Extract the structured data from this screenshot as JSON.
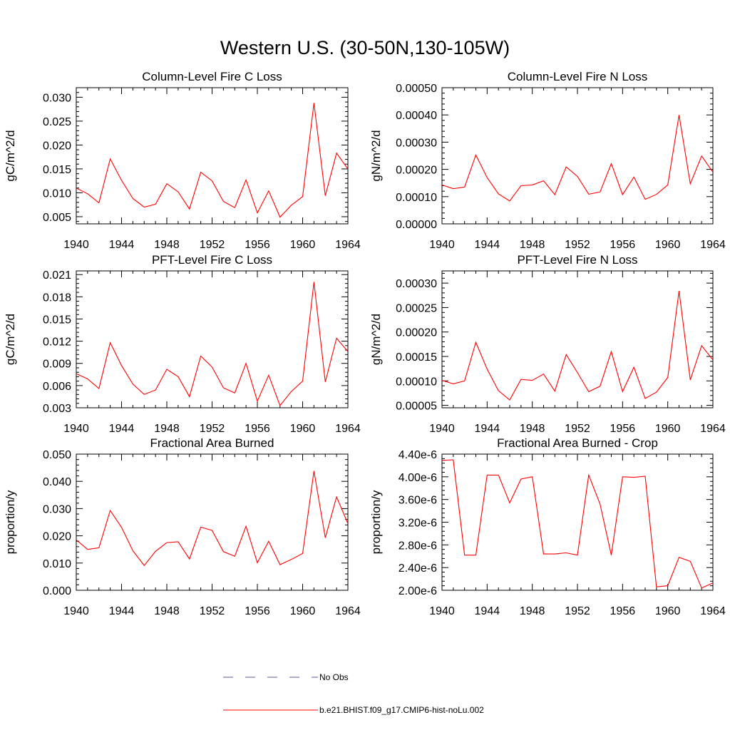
{
  "figure": {
    "title": "Western U.S. (30-50N,130-105W)"
  },
  "legend": {
    "obs_label": "No Obs",
    "obs_color": "#5a5aa0",
    "model_label": "b.e21.BHIST.f09_g17.CMIP6-hist-noLu.002",
    "model_color": "#ff0000"
  },
  "chart_data": [
    {
      "type": "line",
      "title": "Column-Level Fire C Loss",
      "ylabel": "gC/m^2/d",
      "xlim": [
        1940,
        1964
      ],
      "ylim": [
        0.0035,
        0.032
      ],
      "xticks": [
        1940,
        1944,
        1948,
        1952,
        1956,
        1960,
        1964
      ],
      "xtick_labels": [
        "1940",
        "1944",
        "1948",
        "1952",
        "1956",
        "1960",
        "1964"
      ],
      "yticks": [
        0.005,
        0.01,
        0.015,
        0.02,
        0.025,
        0.03
      ],
      "ytick_labels": [
        "0.005",
        "0.010",
        "0.015",
        "0.020",
        "0.025",
        "0.030"
      ],
      "x": [
        1940,
        1941,
        1942,
        1943,
        1944,
        1945,
        1946,
        1947,
        1948,
        1949,
        1950,
        1951,
        1952,
        1953,
        1954,
        1955,
        1956,
        1957,
        1958,
        1959,
        1960,
        1961,
        1962,
        1963,
        1964
      ],
      "series": [
        {
          "values": [
            0.011,
            0.0098,
            0.0079,
            0.0171,
            0.0126,
            0.0088,
            0.007,
            0.0076,
            0.0119,
            0.0102,
            0.0066,
            0.0143,
            0.0125,
            0.0082,
            0.0069,
            0.0127,
            0.0058,
            0.0104,
            0.0049,
            0.0074,
            0.0092,
            0.0288,
            0.0094,
            0.0183,
            0.015
          ]
        }
      ]
    },
    {
      "type": "line",
      "title": "Column-Level Fire N Loss",
      "ylabel": "gN/m^2/d",
      "xlim": [
        1940,
        1964
      ],
      "ylim": [
        0.0,
        0.0005
      ],
      "xticks": [
        1940,
        1944,
        1948,
        1952,
        1956,
        1960,
        1964
      ],
      "xtick_labels": [
        "1940",
        "1944",
        "1948",
        "1952",
        "1956",
        "1960",
        "1964"
      ],
      "yticks": [
        0.0,
        0.0001,
        0.0002,
        0.0003,
        0.0004,
        0.0005
      ],
      "ytick_labels": [
        "0.00000",
        "0.00010",
        "0.00020",
        "0.00030",
        "0.00040",
        "0.00050"
      ],
      "x": [
        1940,
        1941,
        1942,
        1943,
        1944,
        1945,
        1946,
        1947,
        1948,
        1949,
        1950,
        1951,
        1952,
        1953,
        1954,
        1955,
        1956,
        1957,
        1958,
        1959,
        1960,
        1961,
        1962,
        1963,
        1964
      ],
      "series": [
        {
          "values": [
            0.000143,
            0.000129,
            0.000135,
            0.000253,
            0.00017,
            0.00011,
            8.4e-05,
            0.00014,
            0.000143,
            0.000158,
            0.000107,
            0.000209,
            0.000174,
            0.000109,
            0.000117,
            0.000221,
            0.000107,
            0.000172,
            9e-05,
            0.000108,
            0.000143,
            0.0004,
            0.000147,
            0.000249,
            0.00019
          ]
        }
      ]
    },
    {
      "type": "line",
      "title": "PFT-Level Fire C Loss",
      "ylabel": "gC/m^2/d",
      "xlim": [
        1940,
        1964
      ],
      "ylim": [
        0.003,
        0.0215
      ],
      "xticks": [
        1940,
        1944,
        1948,
        1952,
        1956,
        1960,
        1964
      ],
      "xtick_labels": [
        "1940",
        "1944",
        "1948",
        "1952",
        "1956",
        "1960",
        "1964"
      ],
      "yticks": [
        0.003,
        0.006,
        0.009,
        0.012,
        0.015,
        0.018,
        0.021
      ],
      "ytick_labels": [
        "0.003",
        "0.006",
        "0.009",
        "0.012",
        "0.015",
        "0.018",
        "0.021"
      ],
      "x": [
        1940,
        1941,
        1942,
        1943,
        1944,
        1945,
        1946,
        1947,
        1948,
        1949,
        1950,
        1951,
        1952,
        1953,
        1954,
        1955,
        1956,
        1957,
        1958,
        1959,
        1960,
        1961,
        1962,
        1963,
        1964
      ],
      "series": [
        {
          "values": [
            0.0076,
            0.0069,
            0.0056,
            0.0118,
            0.0087,
            0.0062,
            0.0048,
            0.0054,
            0.0082,
            0.0072,
            0.0045,
            0.01,
            0.0085,
            0.0057,
            0.005,
            0.009,
            0.0039,
            0.0074,
            0.0033,
            0.0052,
            0.0066,
            0.02,
            0.0065,
            0.0124,
            0.0106
          ]
        }
      ]
    },
    {
      "type": "line",
      "title": "PFT-Level Fire N Loss",
      "ylabel": "gN/m^2/d",
      "xlim": [
        1940,
        1964
      ],
      "ylim": [
        4.5e-05,
        0.000325
      ],
      "xticks": [
        1940,
        1944,
        1948,
        1952,
        1956,
        1960,
        1964
      ],
      "xtick_labels": [
        "1940",
        "1944",
        "1948",
        "1952",
        "1956",
        "1960",
        "1964"
      ],
      "yticks": [
        5e-05,
        0.0001,
        0.00015,
        0.0002,
        0.00025,
        0.0003
      ],
      "ytick_labels": [
        "0.00005",
        "0.00010",
        "0.00015",
        "0.00020",
        "0.00025",
        "0.00030"
      ],
      "x": [
        1940,
        1941,
        1942,
        1943,
        1944,
        1945,
        1946,
        1947,
        1948,
        1949,
        1950,
        1951,
        1952,
        1953,
        1954,
        1955,
        1956,
        1957,
        1958,
        1959,
        1960,
        1961,
        1962,
        1963,
        1964
      ],
      "series": [
        {
          "values": [
            0.000101,
            9.4e-05,
            0.0001,
            0.000179,
            0.000124,
            8e-05,
            6.1e-05,
            0.000103,
            0.000101,
            0.000114,
            7.9e-05,
            0.000154,
            0.000117,
            7.8e-05,
            8.9e-05,
            0.00016,
            7.8e-05,
            0.000128,
            6.4e-05,
            7.7e-05,
            0.000107,
            0.000284,
            0.000102,
            0.000172,
            0.000143
          ]
        }
      ]
    },
    {
      "type": "line",
      "title": "Fractional Area Burned",
      "ylabel": "proportion/y",
      "xlim": [
        1940,
        1964
      ],
      "ylim": [
        0.0,
        0.05
      ],
      "xticks": [
        1940,
        1944,
        1948,
        1952,
        1956,
        1960,
        1964
      ],
      "xtick_labels": [
        "1940",
        "1944",
        "1948",
        "1952",
        "1956",
        "1960",
        "1964"
      ],
      "yticks": [
        0.0,
        0.01,
        0.02,
        0.03,
        0.04,
        0.05
      ],
      "ytick_labels": [
        "0.000",
        "0.010",
        "0.020",
        "0.030",
        "0.040",
        "0.050"
      ],
      "x": [
        1940,
        1941,
        1942,
        1943,
        1944,
        1945,
        1946,
        1947,
        1948,
        1949,
        1950,
        1951,
        1952,
        1953,
        1954,
        1955,
        1956,
        1957,
        1958,
        1959,
        1960,
        1961,
        1962,
        1963,
        1964
      ],
      "series": [
        {
          "values": [
            0.0185,
            0.015,
            0.0156,
            0.0293,
            0.0231,
            0.0145,
            0.0091,
            0.0143,
            0.0175,
            0.0178,
            0.0115,
            0.0232,
            0.022,
            0.0142,
            0.0125,
            0.0235,
            0.0101,
            0.018,
            0.0094,
            0.0113,
            0.0135,
            0.0438,
            0.0193,
            0.0343,
            0.0245
          ]
        }
      ]
    },
    {
      "type": "line",
      "title": "Fractional Area Burned - Crop",
      "ylabel": "proportion/y",
      "xlim": [
        1940,
        1964
      ],
      "ylim": [
        2e-06,
        4.4e-06
      ],
      "xticks": [
        1940,
        1944,
        1948,
        1952,
        1956,
        1960,
        1964
      ],
      "xtick_labels": [
        "1940",
        "1944",
        "1948",
        "1952",
        "1956",
        "1960",
        "1964"
      ],
      "yticks": [
        2e-06,
        2.4e-06,
        2.8e-06,
        3.2e-06,
        3.6e-06,
        4e-06,
        4.4e-06
      ],
      "ytick_labels": [
        "2.00e-6",
        "2.40e-6",
        "2.80e-6",
        "3.20e-6",
        "3.60e-6",
        "4.00e-6",
        "4.40e-6"
      ],
      "x": [
        1940,
        1941,
        1942,
        1943,
        1944,
        1945,
        1946,
        1947,
        1948,
        1949,
        1950,
        1951,
        1952,
        1953,
        1954,
        1955,
        1956,
        1957,
        1958,
        1959,
        1960,
        1961,
        1962,
        1963,
        1964
      ],
      "series": [
        {
          "values": [
            4.29e-06,
            4.3e-06,
            2.62e-06,
            2.62e-06,
            4.03e-06,
            4.03e-06,
            3.54e-06,
            3.96e-06,
            4e-06,
            2.64e-06,
            2.64e-06,
            2.66e-06,
            2.62e-06,
            4.03e-06,
            3.52e-06,
            2.62e-06,
            4e-06,
            3.99e-06,
            4.01e-06,
            2.06e-06,
            2.08e-06,
            2.58e-06,
            2.51e-06,
            2.04e-06,
            2.13e-06
          ]
        }
      ]
    }
  ]
}
